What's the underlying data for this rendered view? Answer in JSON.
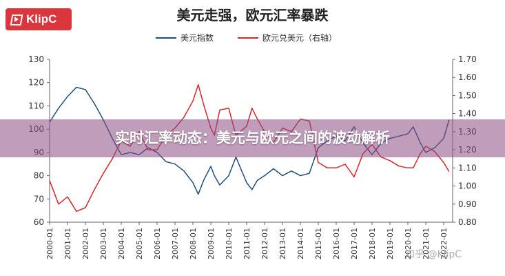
{
  "brand": {
    "name": "KlipC",
    "color": "#d9363e"
  },
  "title": "美元走强，欧元汇率暴跌",
  "banner": {
    "text": "实时汇率动态：美元与欧元之间的波动解析",
    "color": "#8b4d84"
  },
  "watermark": "知乎 @KlipC",
  "chart_data": {
    "type": "line",
    "x_labels": [
      "2000-01",
      "2001-01",
      "2002-01",
      "2003-01",
      "2004-01",
      "2005-01",
      "2006-01",
      "2007-01",
      "2008-01",
      "2009-01",
      "2010-01",
      "2011-01",
      "2012-01",
      "2013-01",
      "2014-01",
      "2015-01",
      "2016-01",
      "2017-01",
      "2018-01",
      "2019-01",
      "2020-01",
      "2021-01",
      "2022-01"
    ],
    "y_left": {
      "min": 60,
      "max": 130,
      "ticks": [
        60,
        70,
        80,
        90,
        100,
        110,
        120,
        130
      ]
    },
    "y_right": {
      "min": 0.8,
      "max": 1.7,
      "ticks": [
        "0.80",
        "0.90",
        "1.00",
        "1.10",
        "1.20",
        "1.30",
        "1.40",
        "1.50",
        "1.60",
        "1.70"
      ]
    },
    "legend_placement": "top",
    "grid": false,
    "series": [
      {
        "name": "美元指数",
        "axis": "left",
        "color": "#1f4e79",
        "x": [
          2000.0,
          2000.5,
          2001.0,
          2001.5,
          2002.0,
          2002.5,
          2003.0,
          2003.5,
          2004.0,
          2004.5,
          2005.0,
          2005.5,
          2006.0,
          2006.5,
          2007.0,
          2007.5,
          2008.0,
          2008.3,
          2008.6,
          2009.0,
          2009.2,
          2009.5,
          2010.0,
          2010.4,
          2011.0,
          2011.3,
          2011.6,
          2012.0,
          2012.5,
          2013.0,
          2013.5,
          2014.0,
          2014.5,
          2015.0,
          2015.5,
          2016.0,
          2016.5,
          2017.0,
          2017.5,
          2018.0,
          2018.5,
          2019.0,
          2019.5,
          2020.0,
          2020.3,
          2020.7,
          2021.0,
          2021.5,
          2022.0,
          2022.3
        ],
        "values": [
          103,
          109,
          114,
          118,
          117,
          111,
          104,
          96,
          89,
          90,
          89,
          92,
          90,
          86,
          85,
          82,
          77,
          72,
          78,
          84,
          80,
          76,
          80,
          88,
          77,
          74,
          78,
          80,
          83,
          80,
          82,
          80,
          81,
          92,
          95,
          97,
          95,
          101,
          94,
          89,
          94,
          96,
          97,
          98,
          101,
          94,
          90,
          92,
          96,
          104
        ]
      },
      {
        "name": "欧元兑美元（右轴）",
        "axis": "right",
        "color": "#d62728",
        "x": [
          2000.0,
          2000.5,
          2001.0,
          2001.5,
          2002.0,
          2002.5,
          2003.0,
          2003.5,
          2004.0,
          2004.5,
          2005.0,
          2005.5,
          2006.0,
          2006.5,
          2007.0,
          2007.5,
          2008.0,
          2008.3,
          2008.6,
          2009.0,
          2009.2,
          2009.5,
          2010.0,
          2010.4,
          2011.0,
          2011.3,
          2011.6,
          2012.0,
          2012.5,
          2013.0,
          2013.5,
          2014.0,
          2014.5,
          2015.0,
          2015.5,
          2016.0,
          2016.5,
          2017.0,
          2017.5,
          2018.0,
          2018.5,
          2019.0,
          2019.5,
          2020.0,
          2020.3,
          2020.7,
          2021.0,
          2021.5,
          2022.0,
          2022.3
        ],
        "values": [
          1.03,
          0.9,
          0.94,
          0.86,
          0.88,
          0.98,
          1.07,
          1.15,
          1.25,
          1.22,
          1.3,
          1.2,
          1.2,
          1.28,
          1.32,
          1.38,
          1.47,
          1.56,
          1.45,
          1.32,
          1.28,
          1.42,
          1.43,
          1.28,
          1.33,
          1.43,
          1.37,
          1.3,
          1.24,
          1.32,
          1.3,
          1.37,
          1.36,
          1.13,
          1.1,
          1.1,
          1.12,
          1.05,
          1.18,
          1.23,
          1.16,
          1.14,
          1.11,
          1.1,
          1.1,
          1.18,
          1.22,
          1.19,
          1.13,
          1.08
        ]
      }
    ]
  }
}
